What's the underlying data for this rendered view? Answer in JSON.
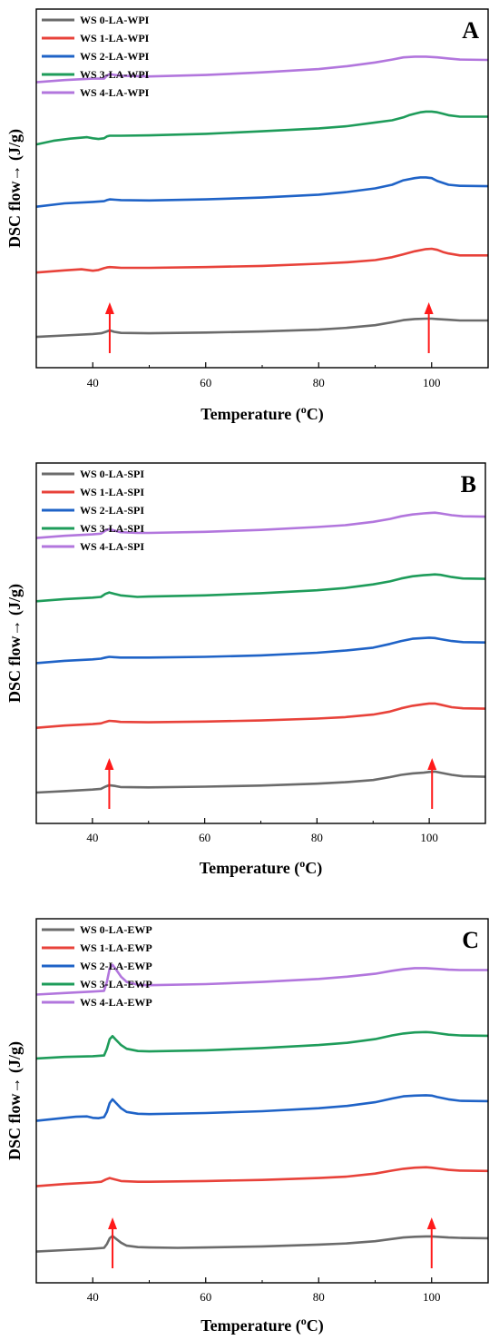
{
  "chart_data": [
    {
      "type": "line",
      "panel_label": "A",
      "xlabel": "Temperature (",
      "xlabel_unit_sup": "o",
      "xlabel_unit_tail": "C)",
      "ylabel": "DSC flow→ (J/g)",
      "xlim": [
        30,
        110
      ],
      "x_ticks": [
        40,
        60,
        80,
        100
      ],
      "y_ticks_shown": false,
      "legend_position": "top-left",
      "arrows_at_x": [
        43,
        99.5
      ],
      "series": [
        {
          "name": "WS 0-LA-WPI",
          "color": "#6b6b6b",
          "x": [
            30,
            35,
            40,
            41.5,
            42.3,
            43,
            43.8,
            45,
            50,
            60,
            70,
            80,
            85,
            90,
            93,
            95,
            97,
            99,
            100,
            101,
            103,
            105,
            110
          ],
          "y": [
            0.12,
            0.14,
            0.16,
            0.17,
            0.19,
            0.21,
            0.19,
            0.175,
            0.17,
            0.18,
            0.195,
            0.22,
            0.245,
            0.28,
            0.32,
            0.35,
            0.365,
            0.37,
            0.37,
            0.365,
            0.355,
            0.345,
            0.345
          ]
        },
        {
          "name": "WS 1-LA-WPI",
          "color": "#e8423a",
          "x": [
            30,
            35,
            38,
            40,
            41,
            42,
            42.5,
            43,
            44,
            45,
            50,
            60,
            70,
            80,
            85,
            90,
            93,
            95,
            97,
            99,
            100,
            101,
            102,
            103,
            105,
            110
          ],
          "y": [
            1.0,
            1.03,
            1.045,
            1.025,
            1.035,
            1.06,
            1.07,
            1.075,
            1.07,
            1.065,
            1.065,
            1.075,
            1.09,
            1.12,
            1.14,
            1.17,
            1.21,
            1.25,
            1.29,
            1.32,
            1.325,
            1.31,
            1.28,
            1.26,
            1.235,
            1.235
          ]
        },
        {
          "name": "WS 2-LA-WPI",
          "color": "#1f63c7",
          "x": [
            30,
            35,
            40,
            42,
            42.5,
            43,
            44,
            45,
            50,
            60,
            70,
            80,
            85,
            90,
            93,
            95,
            97,
            98,
            99,
            100,
            101,
            103,
            105,
            110
          ],
          "y": [
            1.9,
            1.945,
            1.965,
            1.975,
            1.99,
            2.0,
            1.995,
            1.99,
            1.985,
            2.0,
            2.025,
            2.065,
            2.1,
            2.15,
            2.2,
            2.26,
            2.29,
            2.3,
            2.3,
            2.29,
            2.25,
            2.2,
            2.185,
            2.18
          ]
        },
        {
          "name": "WS 3-LA-WPI",
          "color": "#1e9c5a",
          "x": [
            30,
            33,
            36,
            39,
            40,
            41,
            42,
            42.5,
            43,
            44,
            45,
            50,
            60,
            70,
            80,
            85,
            90,
            93,
            94,
            95,
            96,
            97,
            98,
            99,
            100,
            101,
            102,
            103,
            105,
            110
          ],
          "y": [
            2.75,
            2.8,
            2.83,
            2.85,
            2.835,
            2.825,
            2.835,
            2.86,
            2.87,
            2.87,
            2.87,
            2.875,
            2.895,
            2.93,
            2.97,
            3.0,
            3.05,
            3.08,
            3.1,
            3.12,
            3.15,
            3.17,
            3.19,
            3.2,
            3.2,
            3.19,
            3.17,
            3.15,
            3.13,
            3.13
          ]
        },
        {
          "name": "WS 4-LA-WPI",
          "color": "#b276dd",
          "x": [
            30,
            35,
            40,
            42,
            42.5,
            43,
            44,
            45,
            50,
            60,
            70,
            80,
            85,
            90,
            93,
            95,
            97,
            99,
            100,
            101,
            103,
            105,
            110
          ],
          "y": [
            3.6,
            3.63,
            3.65,
            3.65,
            3.69,
            3.71,
            3.7,
            3.69,
            3.68,
            3.7,
            3.735,
            3.78,
            3.82,
            3.87,
            3.91,
            3.94,
            3.95,
            3.95,
            3.945,
            3.94,
            3.925,
            3.91,
            3.905
          ]
        }
      ]
    },
    {
      "type": "line",
      "panel_label": "B",
      "xlabel": "Temperature (",
      "xlabel_unit_sup": "o",
      "xlabel_unit_tail": "C)",
      "ylabel": "DSC flow→ (J/g)",
      "xlim": [
        30,
        110
      ],
      "x_ticks": [
        40,
        60,
        80,
        100
      ],
      "y_ticks_shown": false,
      "legend_position": "top-left",
      "arrows_at_x": [
        43,
        100.5
      ],
      "series": [
        {
          "name": "WS 0-LA-SPI",
          "color": "#6b6b6b",
          "x": [
            30,
            35,
            40,
            41.5,
            42.3,
            43,
            44,
            45,
            50,
            60,
            70,
            80,
            85,
            90,
            93,
            95,
            97,
            99,
            100,
            101,
            102,
            104,
            106,
            110
          ],
          "y": [
            0.12,
            0.14,
            0.16,
            0.17,
            0.2,
            0.22,
            0.21,
            0.195,
            0.19,
            0.2,
            0.215,
            0.24,
            0.26,
            0.29,
            0.33,
            0.36,
            0.38,
            0.39,
            0.4,
            0.405,
            0.39,
            0.36,
            0.34,
            0.335
          ]
        },
        {
          "name": "WS 1-LA-SPI",
          "color": "#e8423a",
          "x": [
            30,
            35,
            40,
            41.5,
            42.3,
            43,
            44,
            45,
            50,
            60,
            70,
            80,
            85,
            90,
            93,
            95,
            97,
            99,
            100,
            101,
            102,
            104,
            106,
            110
          ],
          "y": [
            1.0,
            1.03,
            1.05,
            1.06,
            1.08,
            1.095,
            1.09,
            1.08,
            1.075,
            1.085,
            1.1,
            1.125,
            1.145,
            1.18,
            1.22,
            1.265,
            1.3,
            1.32,
            1.33,
            1.33,
            1.315,
            1.28,
            1.265,
            1.26
          ]
        },
        {
          "name": "WS 2-LA-SPI",
          "color": "#1f63c7",
          "x": [
            30,
            35,
            40,
            41.5,
            42.3,
            43,
            44,
            45,
            50,
            60,
            70,
            80,
            85,
            90,
            93,
            95,
            97,
            99,
            100,
            101,
            102,
            104,
            106,
            110
          ],
          "y": [
            1.88,
            1.91,
            1.93,
            1.94,
            1.955,
            1.965,
            1.96,
            1.955,
            1.955,
            1.965,
            1.985,
            2.02,
            2.05,
            2.09,
            2.14,
            2.18,
            2.21,
            2.22,
            2.225,
            2.22,
            2.205,
            2.18,
            2.165,
            2.16
          ]
        },
        {
          "name": "WS 3-LA-SPI",
          "color": "#1e9c5a",
          "x": [
            30,
            35,
            40,
            41.5,
            42.3,
            43,
            44,
            45,
            48,
            50,
            60,
            70,
            80,
            85,
            90,
            93,
            95,
            97,
            99,
            100,
            101,
            102,
            104,
            106,
            110
          ],
          "y": [
            2.72,
            2.75,
            2.77,
            2.78,
            2.82,
            2.84,
            2.82,
            2.8,
            2.78,
            2.785,
            2.8,
            2.83,
            2.87,
            2.9,
            2.95,
            2.99,
            3.03,
            3.06,
            3.075,
            3.08,
            3.085,
            3.08,
            3.05,
            3.03,
            3.025
          ]
        },
        {
          "name": "WS 4-LA-SPI",
          "color": "#b276dd",
          "x": [
            30,
            35,
            40,
            41.5,
            42.3,
            43,
            44,
            45,
            48,
            50,
            60,
            70,
            80,
            85,
            90,
            93,
            95,
            97,
            99,
            100,
            101,
            102,
            104,
            106,
            110
          ],
          "y": [
            3.58,
            3.61,
            3.63,
            3.64,
            3.68,
            3.7,
            3.68,
            3.66,
            3.65,
            3.65,
            3.665,
            3.69,
            3.73,
            3.755,
            3.8,
            3.84,
            3.875,
            3.9,
            3.915,
            3.92,
            3.925,
            3.915,
            3.89,
            3.875,
            3.87
          ]
        }
      ]
    },
    {
      "type": "line",
      "panel_label": "C",
      "xlabel": "Temperature (",
      "xlabel_unit_sup": "o",
      "xlabel_unit_tail": "C)",
      "ylabel": "DSC flow→ (J/g)",
      "xlim": [
        30,
        110
      ],
      "x_ticks": [
        40,
        60,
        80,
        100
      ],
      "y_ticks_shown": false,
      "legend_position": "top-left",
      "arrows_at_x": [
        43.5,
        100
      ],
      "series": [
        {
          "name": "WS 0-LA-EWP",
          "color": "#6b6b6b",
          "x": [
            30,
            35,
            40,
            42,
            42.5,
            43,
            43.5,
            44,
            45,
            46,
            48,
            50,
            55,
            60,
            70,
            80,
            85,
            90,
            93,
            95,
            97,
            99,
            100,
            101,
            103,
            105,
            110
          ],
          "y": [
            0.12,
            0.14,
            0.16,
            0.17,
            0.22,
            0.3,
            0.33,
            0.3,
            0.24,
            0.2,
            0.18,
            0.175,
            0.17,
            0.175,
            0.19,
            0.215,
            0.23,
            0.26,
            0.29,
            0.31,
            0.32,
            0.325,
            0.325,
            0.32,
            0.31,
            0.305,
            0.3
          ]
        },
        {
          "name": "WS 1-LA-EWP",
          "color": "#e8423a",
          "x": [
            30,
            35,
            40,
            41.5,
            42.3,
            43,
            44,
            45,
            48,
            50,
            60,
            70,
            80,
            85,
            90,
            93,
            95,
            97,
            99,
            100,
            101,
            103,
            105,
            110
          ],
          "y": [
            1.0,
            1.03,
            1.05,
            1.06,
            1.09,
            1.11,
            1.09,
            1.07,
            1.06,
            1.06,
            1.07,
            1.085,
            1.11,
            1.13,
            1.17,
            1.21,
            1.235,
            1.25,
            1.255,
            1.25,
            1.24,
            1.22,
            1.21,
            1.205
          ]
        },
        {
          "name": "WS 2-LA-EWP",
          "color": "#1f63c7",
          "x": [
            30,
            35,
            37,
            39,
            40,
            41,
            42,
            42.5,
            43,
            43.5,
            44,
            45,
            46,
            48,
            50,
            60,
            70,
            80,
            85,
            90,
            93,
            95,
            97,
            99,
            100,
            101,
            103,
            105,
            110
          ],
          "y": [
            1.88,
            1.92,
            1.935,
            1.94,
            1.92,
            1.915,
            1.93,
            2.0,
            2.12,
            2.17,
            2.13,
            2.05,
            2.0,
            1.975,
            1.97,
            1.985,
            2.01,
            2.05,
            2.08,
            2.13,
            2.18,
            2.21,
            2.22,
            2.225,
            2.22,
            2.2,
            2.17,
            2.15,
            2.145
          ]
        },
        {
          "name": "WS 3-LA-EWP",
          "color": "#1e9c5a",
          "x": [
            30,
            35,
            40,
            42,
            42.5,
            43,
            43.5,
            44,
            45,
            46,
            48,
            50,
            60,
            70,
            80,
            85,
            90,
            93,
            95,
            97,
            99,
            100,
            101,
            103,
            105,
            110
          ],
          "y": [
            2.72,
            2.74,
            2.75,
            2.76,
            2.85,
            2.98,
            3.02,
            2.98,
            2.9,
            2.85,
            2.82,
            2.815,
            2.83,
            2.86,
            2.9,
            2.93,
            2.98,
            3.03,
            3.055,
            3.07,
            3.075,
            3.07,
            3.06,
            3.04,
            3.03,
            3.025
          ]
        },
        {
          "name": "WS 4-LA-EWP",
          "color": "#b276dd",
          "x": [
            30,
            35,
            40,
            42,
            42.5,
            43,
            43.5,
            44,
            45,
            46,
            48,
            50,
            60,
            70,
            80,
            85,
            90,
            93,
            95,
            97,
            99,
            100,
            101,
            103,
            105,
            110
          ],
          "y": [
            3.58,
            3.6,
            3.62,
            3.63,
            3.75,
            3.93,
            3.98,
            3.93,
            3.82,
            3.75,
            3.71,
            3.705,
            3.72,
            3.75,
            3.79,
            3.82,
            3.86,
            3.9,
            3.92,
            3.935,
            3.935,
            3.93,
            3.925,
            3.915,
            3.91,
            3.91
          ]
        }
      ]
    }
  ]
}
